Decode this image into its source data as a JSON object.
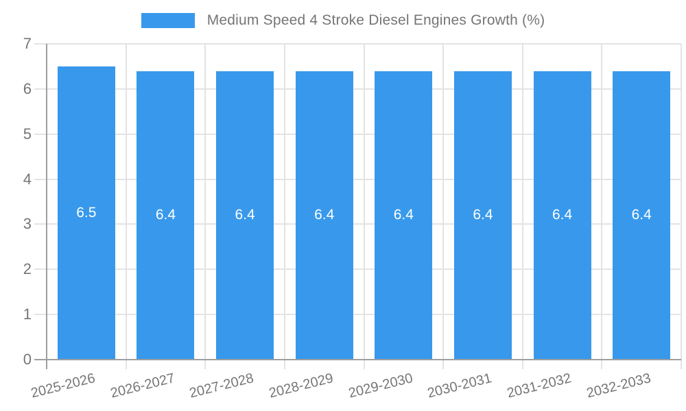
{
  "legend": {
    "series_label": "Medium Speed 4 Stroke Diesel Engines Growth (%)"
  },
  "colors": {
    "bar": "#3899EC",
    "axis_line": "#9e9e9e",
    "gridline": "#e3e3e3",
    "tick_label": "#757575",
    "data_label": "#ffffff",
    "background": "#ffffff"
  },
  "chart_data": {
    "type": "bar",
    "title": "Medium Speed 4 Stroke Diesel Engines Growth (%)",
    "categories": [
      "2025-2026",
      "2026-2027",
      "2027-2028",
      "2028-2029",
      "2029-2030",
      "2030-2031",
      "2031-2032",
      "2032-2033"
    ],
    "values": [
      6.5,
      6.4,
      6.4,
      6.4,
      6.4,
      6.4,
      6.4,
      6.4
    ],
    "value_labels": [
      "6.5",
      "6.4",
      "6.4",
      "6.4",
      "6.4",
      "6.4",
      "6.4",
      "6.4"
    ],
    "xlabel": "",
    "ylabel": "",
    "ylim": [
      0,
      7
    ],
    "yticks": [
      0,
      1,
      2,
      3,
      4,
      5,
      6,
      7
    ],
    "grid": true,
    "legend_position": "top",
    "bar_color": "#3899EC",
    "data_label_position": "center-inside"
  }
}
